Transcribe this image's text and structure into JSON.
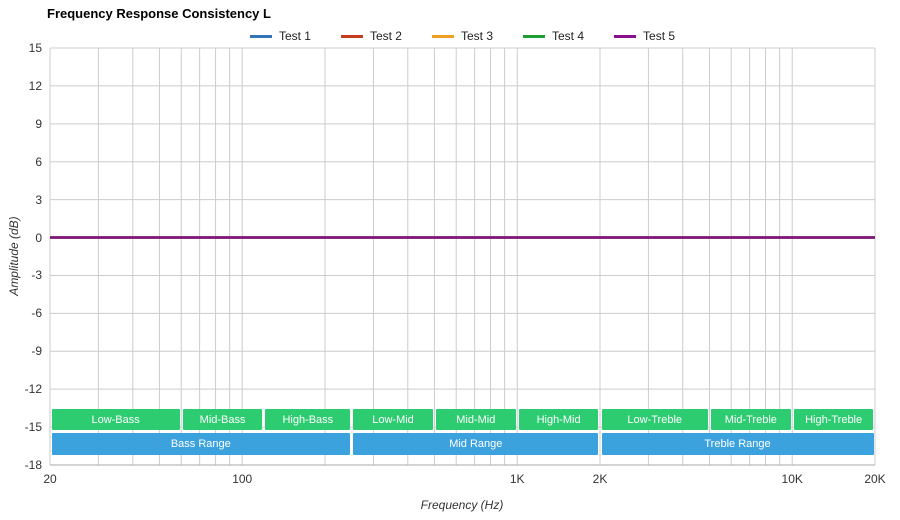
{
  "title": "Frequency Response Consistency L",
  "legend": [
    {
      "label": "Test 1",
      "color": "#3473b5"
    },
    {
      "label": "Test 2",
      "color": "#c43d21"
    },
    {
      "label": "Test 3",
      "color": "#efa024"
    },
    {
      "label": "Test 4",
      "color": "#1d9e33"
    },
    {
      "label": "Test 5",
      "color": "#8b0f8b"
    }
  ],
  "chart_data": {
    "type": "line",
    "title": "Frequency Response Consistency L",
    "xlabel": "Frequency (Hz)",
    "ylabel": "Amplitude (dB)",
    "x_scale": "log",
    "x_range": [
      20,
      20000
    ],
    "y_range": [
      -18,
      15
    ],
    "grid": true,
    "legend_position": "top",
    "grid_color": "#cccccc",
    "axis_line_color": "#aaaaaa",
    "x_ticks": [
      {
        "value": 20,
        "label": "20"
      },
      {
        "value": 100,
        "label": "100"
      },
      {
        "value": 1000,
        "label": "1K"
      },
      {
        "value": 2000,
        "label": "2K"
      },
      {
        "value": 10000,
        "label": "10K"
      },
      {
        "value": 20000,
        "label": "20K"
      }
    ],
    "y_ticks": [
      15,
      12,
      9,
      6,
      3,
      0,
      -3,
      -6,
      -9,
      -12,
      -15,
      -18
    ],
    "series": [
      {
        "name": "Test 1",
        "color": "#3473b5",
        "points": [
          [
            20,
            0
          ],
          [
            20000,
            0
          ]
        ]
      },
      {
        "name": "Test 2",
        "color": "#c43d21",
        "points": [
          [
            20,
            0
          ],
          [
            20000,
            0
          ]
        ]
      },
      {
        "name": "Test 3",
        "color": "#efa024",
        "points": [
          [
            20,
            0
          ],
          [
            20000,
            0
          ]
        ]
      },
      {
        "name": "Test 4",
        "color": "#1d9e33",
        "points": [
          [
            20,
            0
          ],
          [
            20000,
            0
          ]
        ]
      },
      {
        "name": "Test 5",
        "color": "#8b0f8b",
        "points": [
          [
            20,
            0
          ],
          [
            20000,
            0
          ]
        ]
      }
    ],
    "bands": {
      "sub_color": "#2ecc71",
      "main_color": "#3ba2de",
      "sub": [
        {
          "label": "Low-Bass",
          "from": 20,
          "to": 60
        },
        {
          "label": "Mid-Bass",
          "from": 60,
          "to": 120
        },
        {
          "label": "High-Bass",
          "from": 120,
          "to": 250
        },
        {
          "label": "Low-Mid",
          "from": 250,
          "to": 500
        },
        {
          "label": "Mid-Mid",
          "from": 500,
          "to": 1000
        },
        {
          "label": "High-Mid",
          "from": 1000,
          "to": 2000
        },
        {
          "label": "Low-Treble",
          "from": 2000,
          "to": 5000
        },
        {
          "label": "Mid-Treble",
          "from": 5000,
          "to": 10000
        },
        {
          "label": "High-Treble",
          "from": 10000,
          "to": 20000
        }
      ],
      "main": [
        {
          "label": "Bass Range",
          "from": 20,
          "to": 250
        },
        {
          "label": "Mid Range",
          "from": 250,
          "to": 2000
        },
        {
          "label": "Treble Range",
          "from": 2000,
          "to": 20000
        }
      ]
    }
  }
}
